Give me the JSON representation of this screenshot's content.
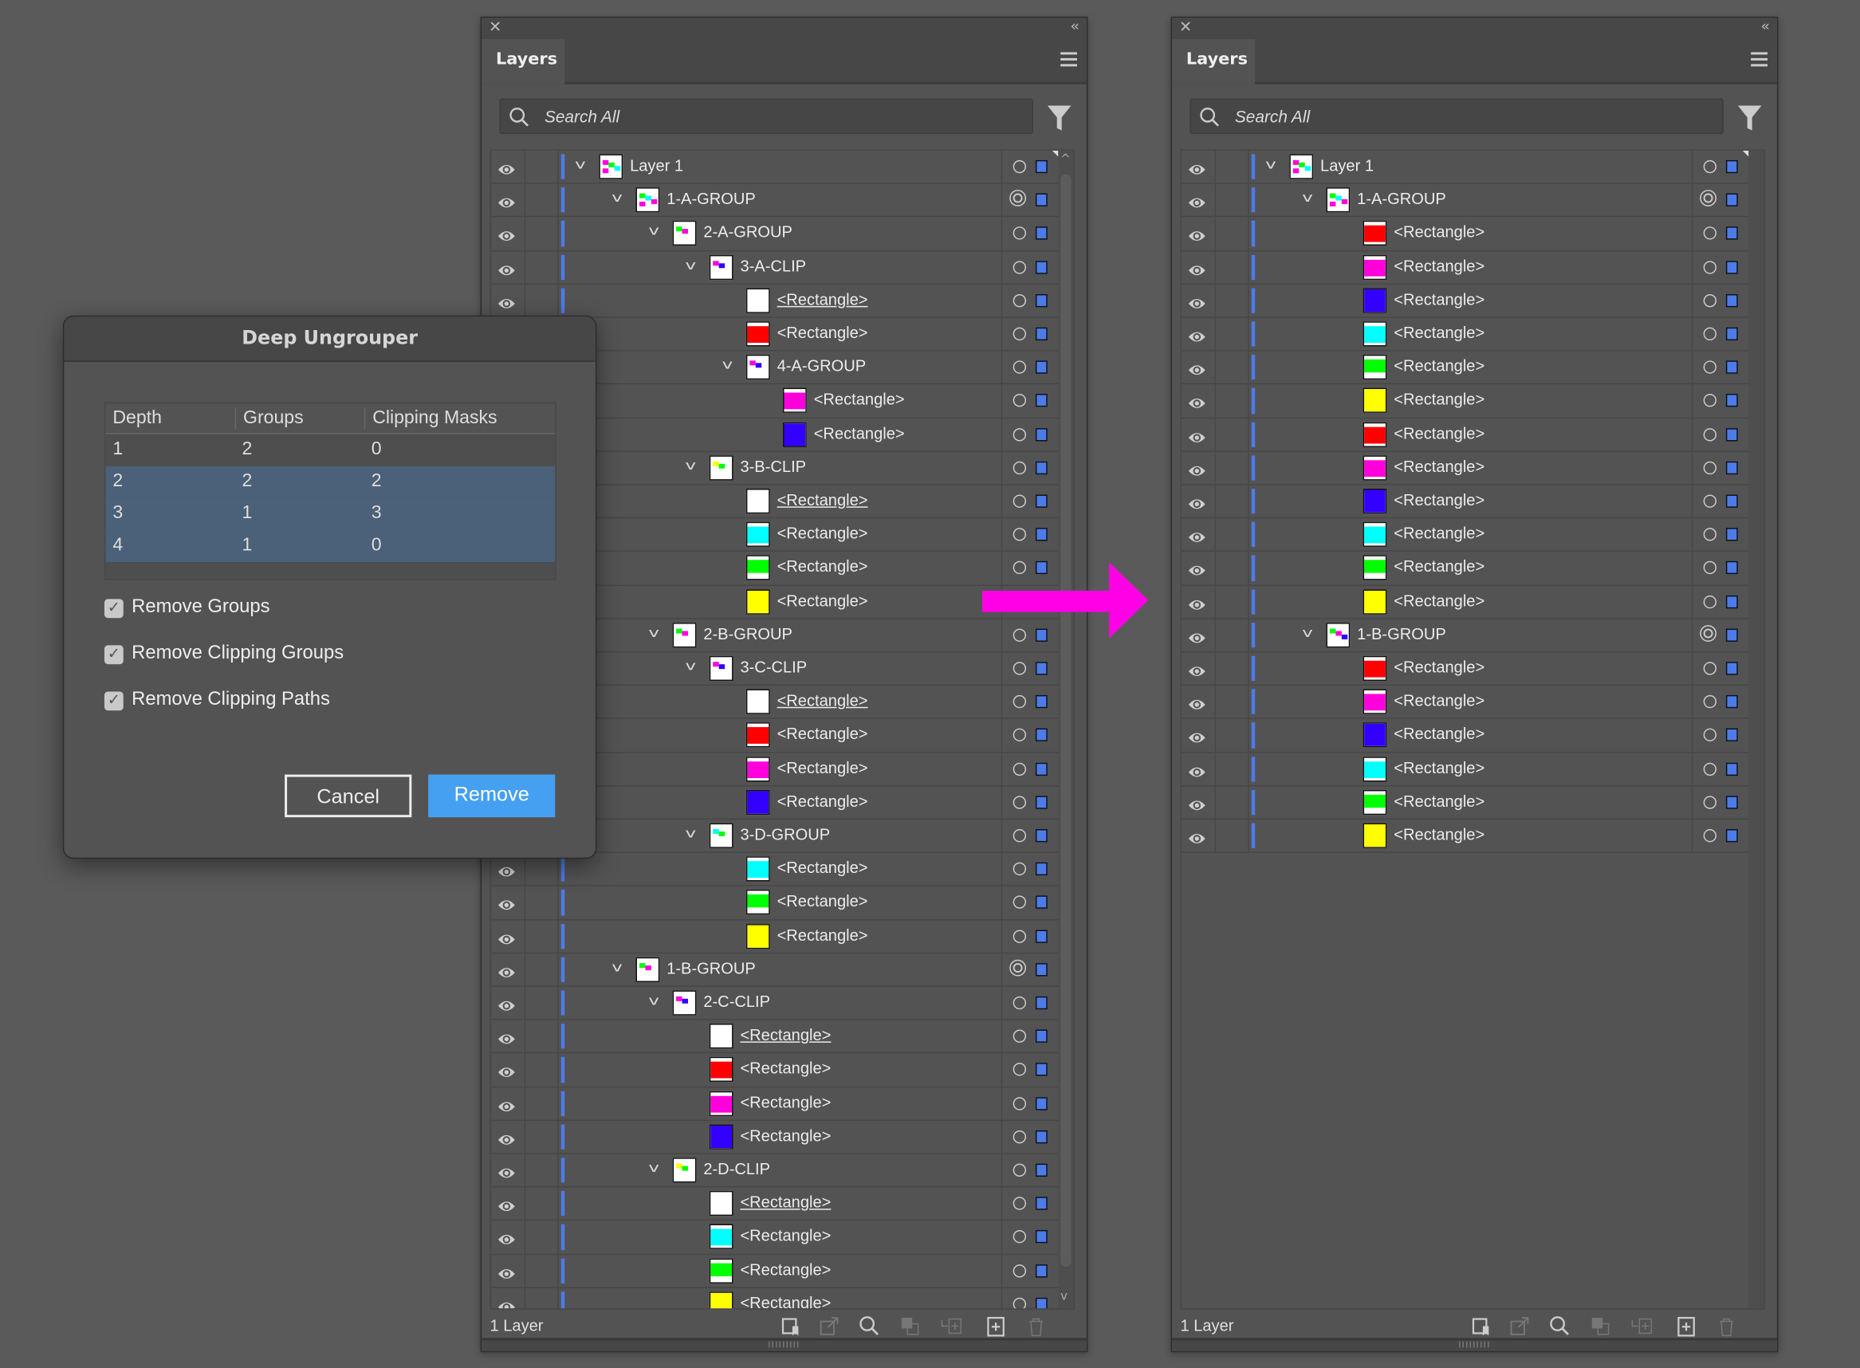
{
  "panels": [
    {
      "tab": "Layers",
      "search_placeholder": "Search All",
      "footer_count": "1 Layer",
      "rows": [
        {
          "name": "Layer 1",
          "lvl": 0,
          "chev": true,
          "thumb": "group",
          "tc": [
            "#ff00dd",
            "#00ff00",
            "#00ffff",
            "#ff00dd"
          ]
        },
        {
          "name": "1-A-GROUP",
          "lvl": 1,
          "chev": true,
          "thumb": "group",
          "dbl": true,
          "tc": [
            "#00ff00",
            "#00ffff",
            "#ff00dd",
            "#ff00dd"
          ]
        },
        {
          "name": "2-A-GROUP",
          "lvl": 2,
          "chev": true,
          "thumb": "group",
          "tc": [
            "#00ff00",
            "#ff00dd"
          ]
        },
        {
          "name": "3-A-CLIP",
          "lvl": 3,
          "chev": true,
          "thumb": "group",
          "tc": [
            "#ff00dd",
            "#3300ff"
          ]
        },
        {
          "name": "<Rectangle>",
          "lvl": 4,
          "thumb": "#ffffff",
          "u": true
        },
        {
          "name": "<Rectangle>",
          "lvl": 4,
          "thumb": "#ff0000"
        },
        {
          "name": "4-A-GROUP",
          "lvl": 4,
          "chev": true,
          "thumb": "group",
          "tc": [
            "#ff00dd",
            "#3300ff"
          ]
        },
        {
          "name": "<Rectangle>",
          "lvl": 5,
          "thumb": "#ff00dd"
        },
        {
          "name": "<Rectangle>",
          "lvl": 5,
          "thumb": "#3300ff"
        },
        {
          "name": "3-B-CLIP",
          "lvl": 3,
          "chev": true,
          "thumb": "group",
          "tc": [
            "#ffff00",
            "#00ff00"
          ]
        },
        {
          "name": "<Rectangle>",
          "lvl": 4,
          "thumb": "#ffffff",
          "u": true
        },
        {
          "name": "<Rectangle>",
          "lvl": 4,
          "thumb": "#00ffff"
        },
        {
          "name": "<Rectangle>",
          "lvl": 4,
          "thumb": "#00ff00"
        },
        {
          "name": "<Rectangle>",
          "lvl": 4,
          "thumb": "#ffff00"
        },
        {
          "name": "2-B-GROUP",
          "lvl": 2,
          "chev": true,
          "thumb": "group",
          "tc": [
            "#00ff00",
            "#ff00dd"
          ]
        },
        {
          "name": "3-C-CLIP",
          "lvl": 3,
          "chev": true,
          "thumb": "group",
          "tc": [
            "#ff00dd",
            "#3300ff"
          ]
        },
        {
          "name": "<Rectangle>",
          "lvl": 4,
          "thumb": "#ffffff",
          "u": true
        },
        {
          "name": "<Rectangle>",
          "lvl": 4,
          "thumb": "#ff0000"
        },
        {
          "name": "<Rectangle>",
          "lvl": 4,
          "thumb": "#ff00dd"
        },
        {
          "name": "<Rectangle>",
          "lvl": 4,
          "thumb": "#3300ff"
        },
        {
          "name": "3-D-GROUP",
          "lvl": 3,
          "chev": true,
          "thumb": "group",
          "tc": [
            "#00ffff",
            "#00ff00"
          ]
        },
        {
          "name": "<Rectangle>",
          "lvl": 4,
          "thumb": "#00ffff"
        },
        {
          "name": "<Rectangle>",
          "lvl": 4,
          "thumb": "#00ff00"
        },
        {
          "name": "<Rectangle>",
          "lvl": 4,
          "thumb": "#ffff00"
        },
        {
          "name": "1-B-GROUP",
          "lvl": 1,
          "chev": true,
          "thumb": "group",
          "dbl": true,
          "tc": [
            "#00ff00",
            "#ff00dd"
          ]
        },
        {
          "name": "2-C-CLIP",
          "lvl": 2,
          "chev": true,
          "thumb": "group",
          "tc": [
            "#ff00dd",
            "#3300ff"
          ]
        },
        {
          "name": "<Rectangle>",
          "lvl": 3,
          "thumb": "#ffffff",
          "u": true
        },
        {
          "name": "<Rectangle>",
          "lvl": 3,
          "thumb": "#ff0000"
        },
        {
          "name": "<Rectangle>",
          "lvl": 3,
          "thumb": "#ff00dd"
        },
        {
          "name": "<Rectangle>",
          "lvl": 3,
          "thumb": "#3300ff"
        },
        {
          "name": "2-D-CLIP",
          "lvl": 2,
          "chev": true,
          "thumb": "group",
          "tc": [
            "#ffff00",
            "#00ff00"
          ]
        },
        {
          "name": "<Rectangle>",
          "lvl": 3,
          "thumb": "#ffffff",
          "u": true
        },
        {
          "name": "<Rectangle>",
          "lvl": 3,
          "thumb": "#00ffff"
        },
        {
          "name": "<Rectangle>",
          "lvl": 3,
          "thumb": "#00ff00"
        },
        {
          "name": "<Rectangle>",
          "lvl": 3,
          "thumb": "#ffff00"
        }
      ]
    },
    {
      "tab": "Layers",
      "search_placeholder": "Search All",
      "footer_count": "1 Layer",
      "rows": [
        {
          "name": "Layer 1",
          "lvl": 0,
          "chev": true,
          "thumb": "group",
          "tc": [
            "#ff00dd",
            "#00ff00",
            "#00ffff",
            "#ff00dd"
          ]
        },
        {
          "name": "1-A-GROUP",
          "lvl": 1,
          "chev": true,
          "thumb": "group",
          "dbl": true,
          "tc": [
            "#00ff00",
            "#00ffff",
            "#ff00dd",
            "#ff00dd"
          ]
        },
        {
          "name": "<Rectangle>",
          "lvl": 2,
          "thumb": "#ff0000"
        },
        {
          "name": "<Rectangle>",
          "lvl": 2,
          "thumb": "#ff00dd"
        },
        {
          "name": "<Rectangle>",
          "lvl": 2,
          "thumb": "#3300ff"
        },
        {
          "name": "<Rectangle>",
          "lvl": 2,
          "thumb": "#00ffff"
        },
        {
          "name": "<Rectangle>",
          "lvl": 2,
          "thumb": "#00ff00"
        },
        {
          "name": "<Rectangle>",
          "lvl": 2,
          "thumb": "#ffff00"
        },
        {
          "name": "<Rectangle>",
          "lvl": 2,
          "thumb": "#ff0000"
        },
        {
          "name": "<Rectangle>",
          "lvl": 2,
          "thumb": "#ff00dd"
        },
        {
          "name": "<Rectangle>",
          "lvl": 2,
          "thumb": "#3300ff"
        },
        {
          "name": "<Rectangle>",
          "lvl": 2,
          "thumb": "#00ffff"
        },
        {
          "name": "<Rectangle>",
          "lvl": 2,
          "thumb": "#00ff00"
        },
        {
          "name": "<Rectangle>",
          "lvl": 2,
          "thumb": "#ffff00"
        },
        {
          "name": "1-B-GROUP",
          "lvl": 1,
          "chev": true,
          "thumb": "group",
          "dbl": true,
          "tc": [
            "#00ff00",
            "#ff00dd",
            "#3300ff"
          ]
        },
        {
          "name": "<Rectangle>",
          "lvl": 2,
          "thumb": "#ff0000"
        },
        {
          "name": "<Rectangle>",
          "lvl": 2,
          "thumb": "#ff00dd"
        },
        {
          "name": "<Rectangle>",
          "lvl": 2,
          "thumb": "#3300ff"
        },
        {
          "name": "<Rectangle>",
          "lvl": 2,
          "thumb": "#00ffff"
        },
        {
          "name": "<Rectangle>",
          "lvl": 2,
          "thumb": "#00ff00"
        },
        {
          "name": "<Rectangle>",
          "lvl": 2,
          "thumb": "#ffff00"
        }
      ]
    }
  ],
  "dialog": {
    "title": "Deep Ungrouper",
    "columns": [
      "Depth",
      "Groups",
      "Clipping Masks"
    ],
    "rows": [
      {
        "depth": "1",
        "groups": "2",
        "masks": "0",
        "selected": false
      },
      {
        "depth": "2",
        "groups": "2",
        "masks": "2",
        "selected": true
      },
      {
        "depth": "3",
        "groups": "1",
        "masks": "3",
        "selected": true
      },
      {
        "depth": "4",
        "groups": "1",
        "masks": "0",
        "selected": true
      }
    ],
    "options": [
      {
        "label": "Remove Groups",
        "checked": true
      },
      {
        "label": "Remove Clipping Groups",
        "checked": true
      },
      {
        "label": "Remove Clipping Paths",
        "checked": true
      }
    ],
    "cancel_label": "Cancel",
    "remove_label": "Remove"
  },
  "colors": {
    "arrow": "#ff00e6",
    "accent": "#4d7be8",
    "remove_button": "#45a0f2"
  }
}
